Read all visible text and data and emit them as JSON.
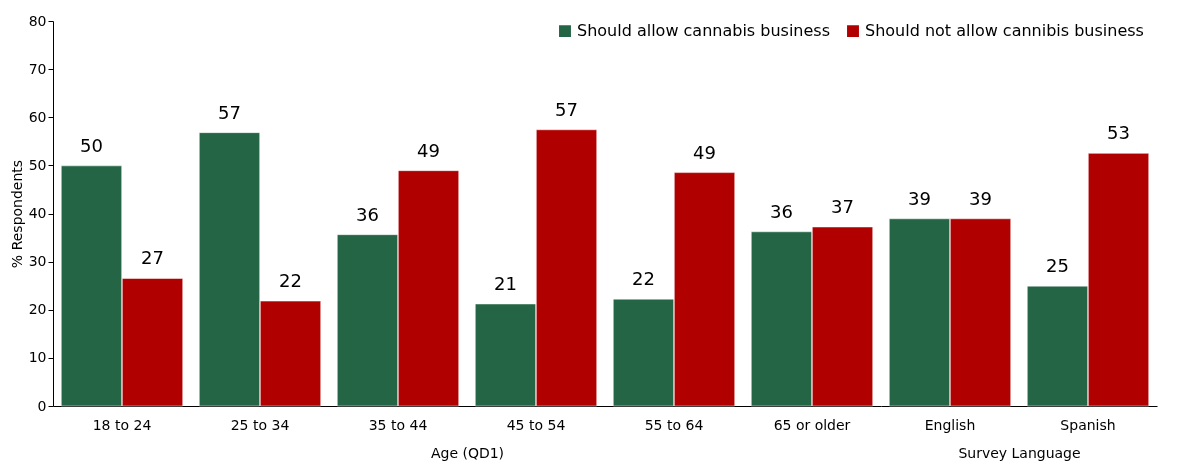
{
  "chart_data": [
    {
      "type": "bar",
      "xlabel": "Age (QD1)",
      "ylabel": "% Respondents",
      "categories": [
        "18 to 24",
        "25 to 34",
        "35 to 44",
        "45 to 54",
        "55 to 64",
        "65 or older"
      ],
      "series": [
        {
          "name": "Should allow cannabis business",
          "color": "#236544",
          "values": [
            49.9,
            56.8,
            35.6,
            21.2,
            22.2,
            36.2
          ],
          "value_labels": [
            "50",
            "57",
            "36",
            "21",
            "22",
            "36"
          ]
        },
        {
          "name": "Should not allow cannibis business",
          "color": "#b10000",
          "values": [
            26.5,
            21.8,
            48.9,
            57.4,
            48.5,
            37.2
          ],
          "value_labels": [
            "27",
            "22",
            "49",
            "57",
            "49",
            "37"
          ]
        }
      ],
      "ylim": [
        0,
        80
      ],
      "yticks": [
        0,
        10,
        20,
        30,
        40,
        50,
        60,
        70,
        80
      ],
      "grid": false,
      "legend": "top right"
    },
    {
      "type": "bar",
      "xlabel": "Survey Language",
      "categories": [
        "English",
        "Spanish"
      ],
      "series": [
        {
          "name": "Should allow cannabis business",
          "color": "#236544",
          "values": [
            38.9,
            24.9
          ],
          "value_labels": [
            "39",
            "25"
          ]
        },
        {
          "name": "Should not allow cannibis business",
          "color": "#b10000",
          "values": [
            38.9,
            52.5
          ],
          "value_labels": [
            "39",
            "53"
          ]
        }
      ],
      "ylim": [
        0,
        80
      ],
      "yticks": [
        0,
        10,
        20,
        30,
        40,
        50,
        60,
        70,
        80
      ],
      "grid": false,
      "tick_labels": "x"
    }
  ]
}
